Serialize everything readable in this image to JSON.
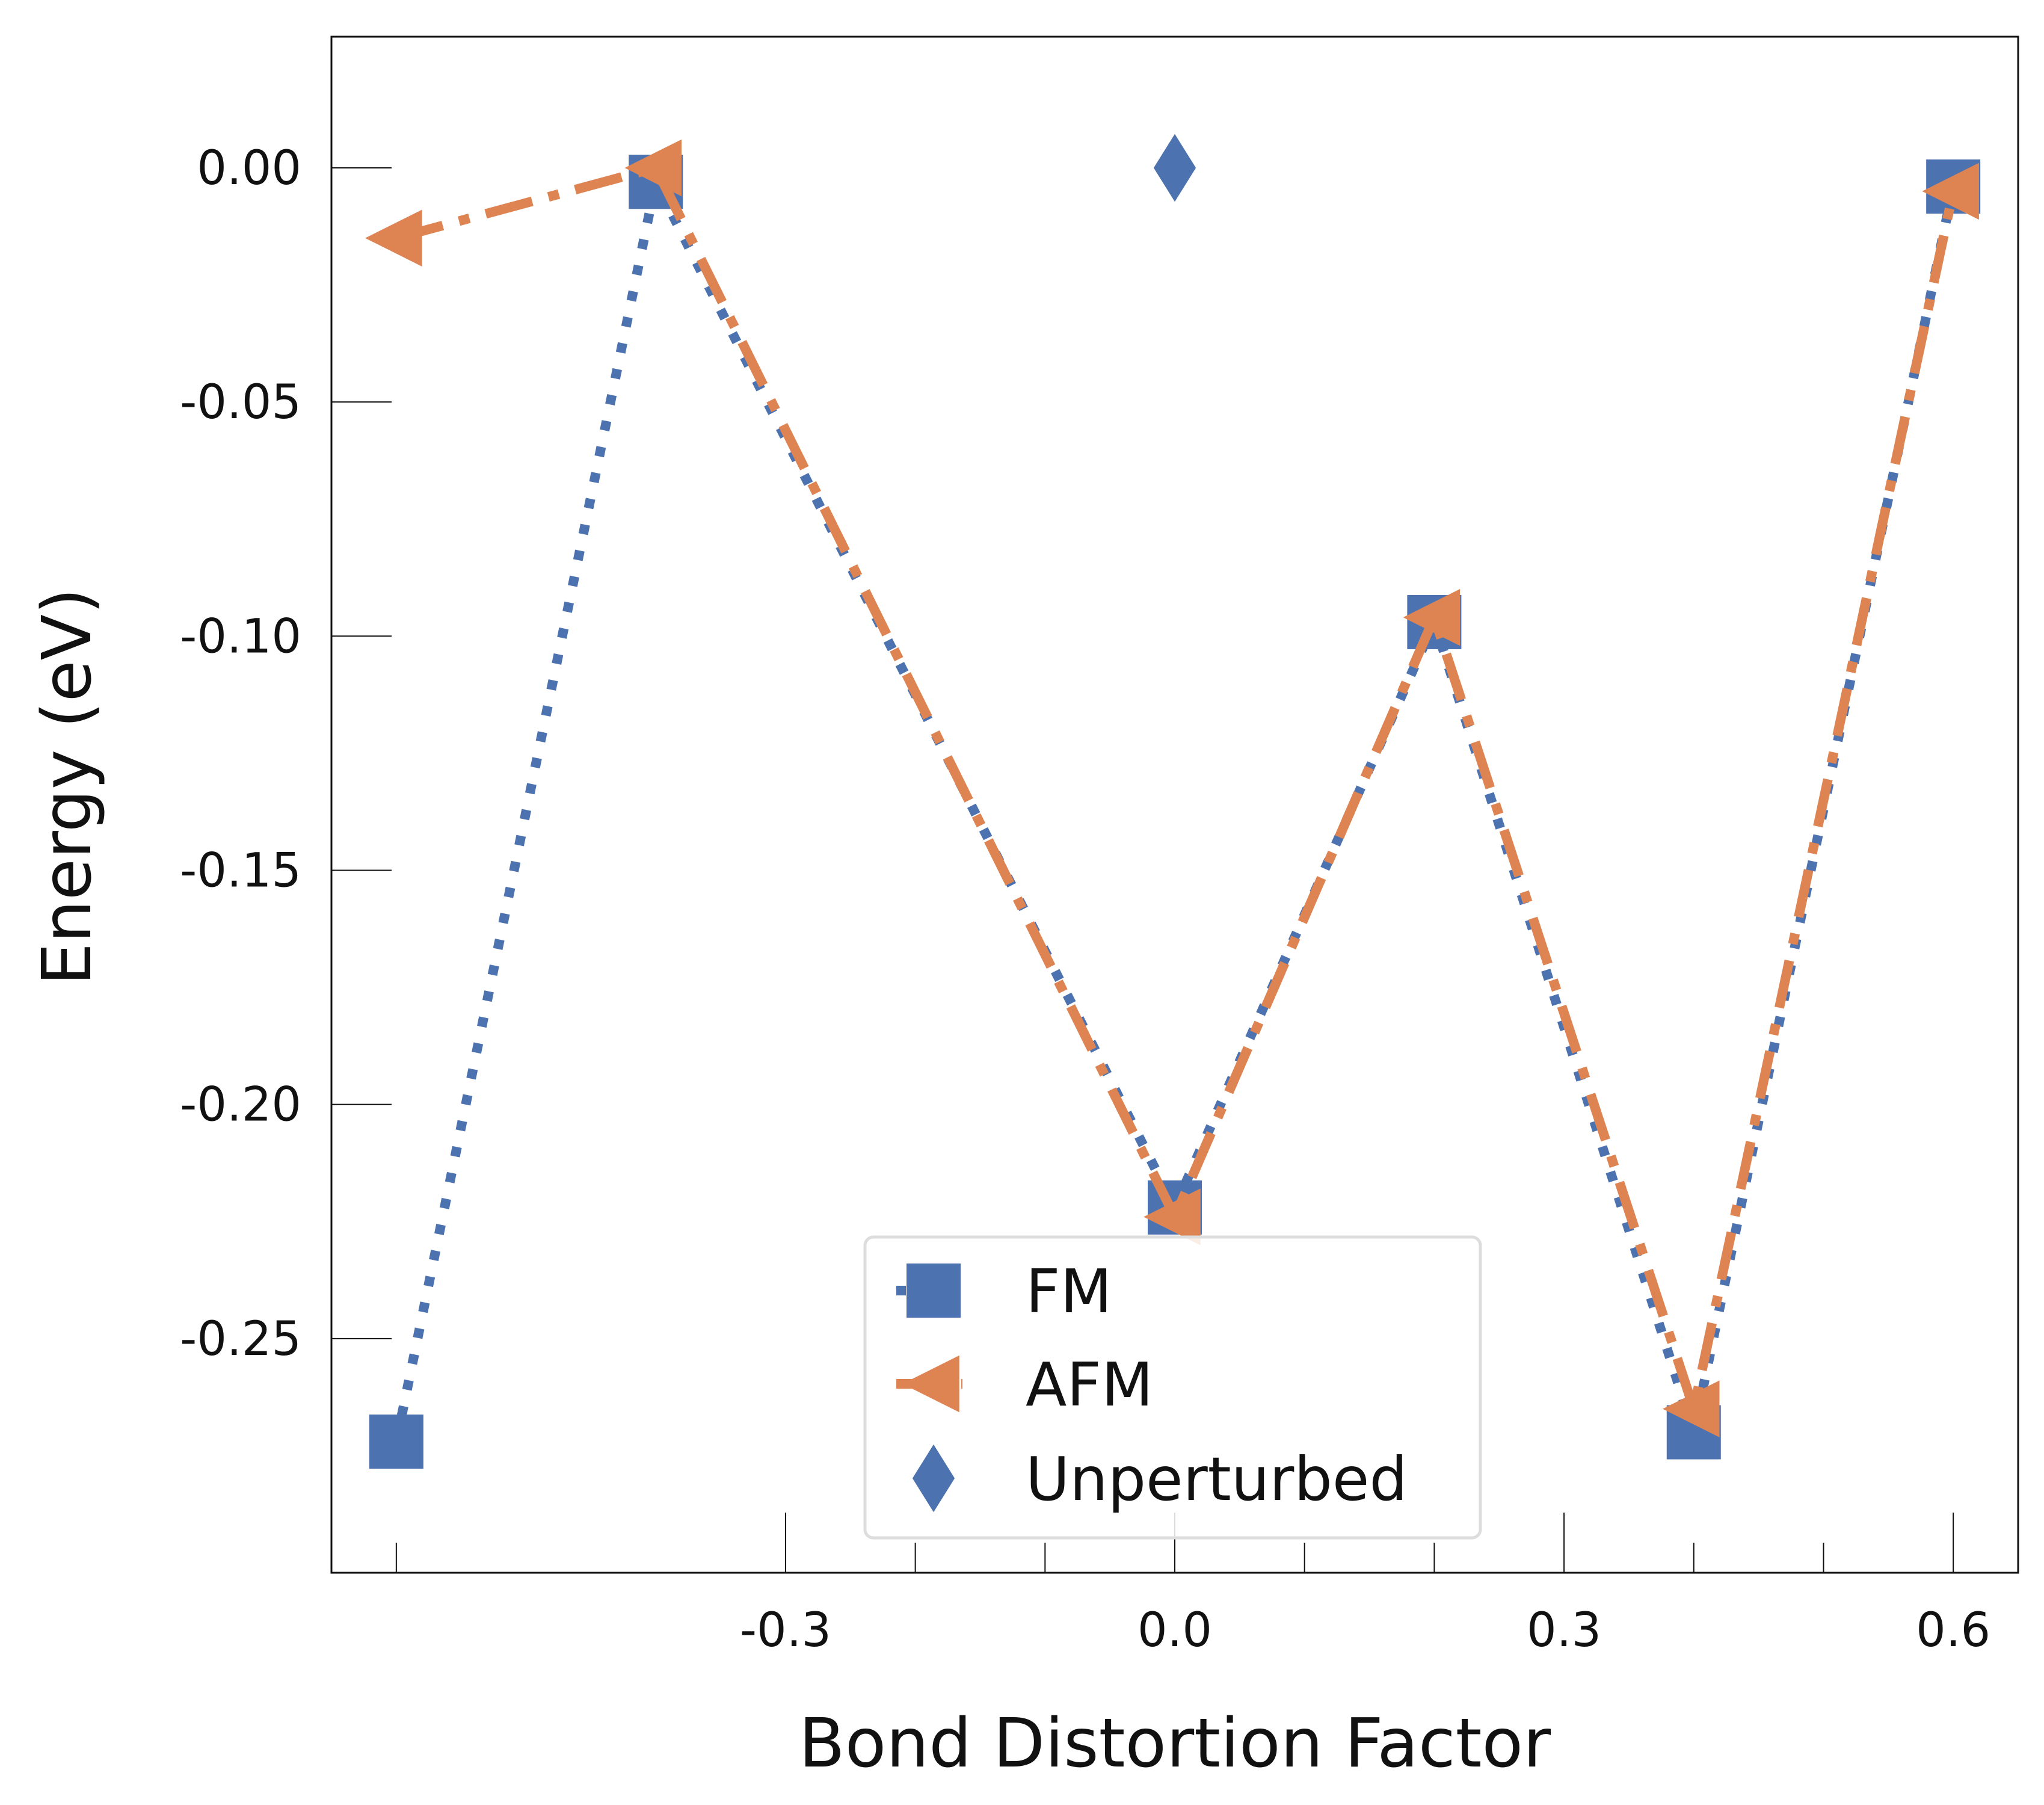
{
  "chart_data": {
    "type": "line",
    "title": "",
    "xlabel": "Bond Distortion Factor",
    "ylabel": "Energy (eV)",
    "xlim": [
      -0.65,
      0.65
    ],
    "ylim": [
      -0.3,
      0.028
    ],
    "xticks": [
      {
        "value": -0.3,
        "label": "-0.3"
      },
      {
        "value": 0.0,
        "label": "0.0"
      },
      {
        "value": 0.3,
        "label": "0.3"
      },
      {
        "value": 0.6,
        "label": "0.6"
      }
    ],
    "xminorticks": [
      -0.6,
      -0.2,
      -0.1,
      0.1,
      0.2,
      0.4,
      0.5
    ],
    "yticks": [
      {
        "value": 0.0,
        "label": "0.00"
      },
      {
        "value": -0.05,
        "label": "-0.05"
      },
      {
        "value": -0.1,
        "label": "-0.10"
      },
      {
        "value": -0.15,
        "label": "-0.15"
      },
      {
        "value": -0.2,
        "label": "-0.20"
      },
      {
        "value": -0.25,
        "label": "-0.25"
      }
    ],
    "grid": false,
    "legend_position": "lower center",
    "series": [
      {
        "name": "FM",
        "color": "#4C72B0",
        "linestyle": "dotted",
        "marker": "square",
        "points": [
          {
            "x": -0.6,
            "y": -0.272
          },
          {
            "x": -0.4,
            "y": -0.003
          },
          {
            "x": 0.0,
            "y": -0.222
          },
          {
            "x": 0.2,
            "y": -0.097
          },
          {
            "x": 0.4,
            "y": -0.27
          },
          {
            "x": 0.6,
            "y": -0.004
          }
        ]
      },
      {
        "name": "AFM",
        "color": "#DD8452",
        "linestyle": "dashdot",
        "marker": "triangle-left",
        "points": [
          {
            "x": -0.6,
            "y": -0.015
          },
          {
            "x": -0.4,
            "y": 0.0
          },
          {
            "x": 0.0,
            "y": -0.224
          },
          {
            "x": 0.2,
            "y": -0.096
          },
          {
            "x": 0.4,
            "y": -0.265
          },
          {
            "x": 0.6,
            "y": -0.005
          }
        ]
      },
      {
        "name": "Unperturbed",
        "color": "#4C72B0",
        "linestyle": "none",
        "marker": "diamond",
        "points": [
          {
            "x": 0.0,
            "y": 0.0
          }
        ]
      }
    ]
  }
}
